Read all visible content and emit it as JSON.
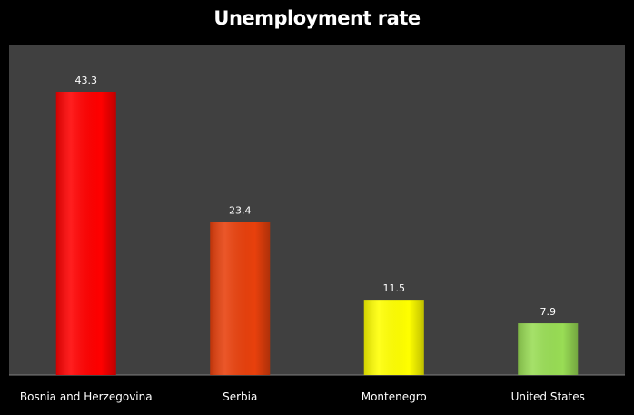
{
  "chart_data": {
    "type": "bar",
    "title": "Unemployment rate",
    "categories": [
      "Bosnia and Herzegovina",
      "Serbia",
      "Montenegro",
      "United States"
    ],
    "values": [
      43.3,
      23.4,
      11.5,
      7.9
    ],
    "value_labels": [
      "43.3",
      "23.4",
      "11.5",
      "7.9"
    ],
    "bar_colors": [
      "#ff0000",
      "#e8400c",
      "#ffff00",
      "#99dd55"
    ],
    "xlabel": "",
    "ylabel": "",
    "ylim": [
      0,
      43.3
    ],
    "grid": false,
    "legend": "none",
    "plot_background": "#404040",
    "page_background": "#000000"
  }
}
